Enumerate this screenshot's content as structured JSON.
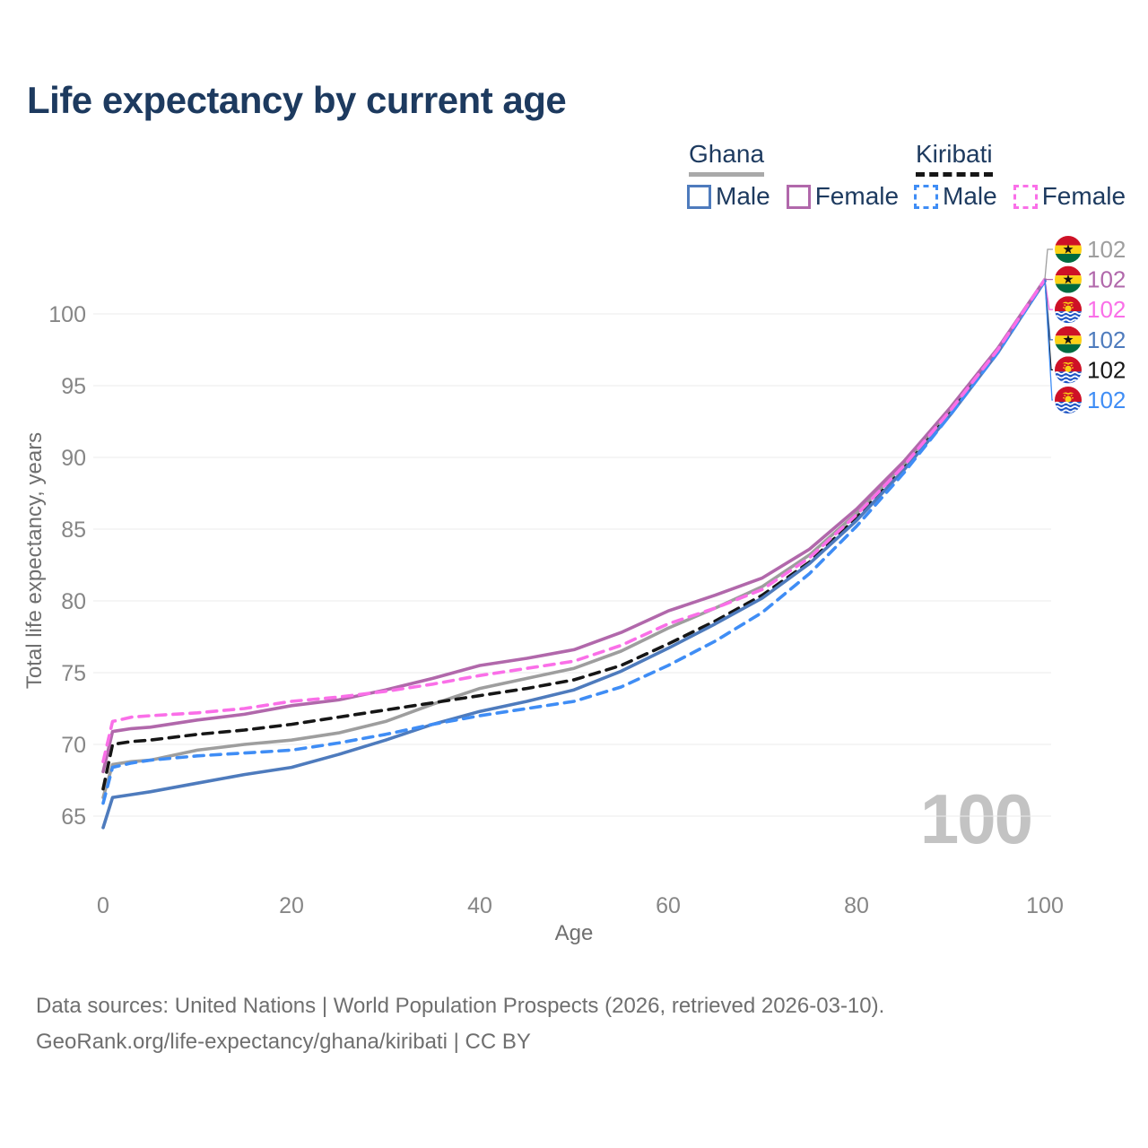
{
  "title": "Life expectancy by current age",
  "watermark": {
    "current_age_frame": "100"
  },
  "legend": {
    "groups": [
      {
        "name": "Ghana",
        "underline_color": "#a9a9a9",
        "underline_style": "solid",
        "items": [
          {
            "label": "Male",
            "color": "#4e7bbd",
            "dashed": false
          },
          {
            "label": "Female",
            "color": "#b168ab",
            "dashed": false
          }
        ]
      },
      {
        "name": "Kiribati",
        "underline_color": "#161616",
        "underline_style": "dashed",
        "items": [
          {
            "label": "Male",
            "color": "#3f8df5",
            "dashed": true
          },
          {
            "label": "Female",
            "color": "#fa6fe8",
            "dashed": true
          }
        ]
      }
    ]
  },
  "footer": {
    "line1": "Data sources: United Nations | World Population Prospects (2026, retrieved 2026-03-10).",
    "line2": "GeoRank.org/life-expectancy/ghana/kiribati | CC BY"
  },
  "chart_data": {
    "type": "line",
    "title": "Life expectancy by current age",
    "xlabel": "Age",
    "ylabel": "Total life expectancy, years",
    "xlim": [
      0,
      100
    ],
    "ylim": [
      63.5,
      103
    ],
    "x_ticks": [
      0,
      20,
      40,
      60,
      80,
      100
    ],
    "y_ticks": [
      65,
      70,
      75,
      80,
      85,
      90,
      95,
      100
    ],
    "grid": "horizontal",
    "legend_position": "top-right",
    "x": [
      0,
      1,
      3,
      5,
      10,
      15,
      20,
      25,
      30,
      35,
      40,
      45,
      50,
      55,
      60,
      65,
      70,
      75,
      80,
      85,
      90,
      95,
      100
    ],
    "series": [
      {
        "id": "ghana-total",
        "name": "Ghana",
        "flag": "ghana",
        "color": "#9e9e9e",
        "dashed": false,
        "z": 1,
        "end_label": "102",
        "values": [
          66.3,
          68.6,
          68.8,
          68.9,
          69.6,
          70.0,
          70.3,
          70.8,
          71.6,
          72.8,
          73.9,
          74.6,
          75.3,
          76.5,
          78.1,
          79.5,
          81.0,
          83.2,
          86.1,
          89.5,
          93.4,
          97.5,
          102.4
        ]
      },
      {
        "id": "ghana-female",
        "name": "Ghana Female",
        "flag": "ghana",
        "color": "#b168ab",
        "dashed": false,
        "z": 5,
        "end_label": "102",
        "values": [
          68.1,
          70.9,
          71.1,
          71.2,
          71.7,
          72.1,
          72.7,
          73.1,
          73.8,
          74.6,
          75.5,
          76.0,
          76.6,
          77.8,
          79.3,
          80.4,
          81.6,
          83.6,
          86.4,
          89.7,
          93.5,
          97.6,
          102.4
        ]
      },
      {
        "id": "kiribati-female",
        "name": "Kiribati Female",
        "flag": "kiribati",
        "color": "#fa6fe8",
        "dashed": true,
        "z": 6,
        "end_label": "102",
        "values": [
          68.8,
          71.6,
          71.9,
          72.0,
          72.2,
          72.5,
          73.0,
          73.3,
          73.7,
          74.2,
          74.8,
          75.3,
          75.8,
          76.9,
          78.4,
          79.5,
          80.8,
          83.0,
          86.0,
          89.4,
          93.3,
          97.5,
          102.4
        ]
      },
      {
        "id": "ghana-male",
        "name": "Ghana Male",
        "flag": "ghana",
        "color": "#4e7bbd",
        "dashed": false,
        "z": 3,
        "end_label": "102",
        "values": [
          64.2,
          66.3,
          66.5,
          66.7,
          67.3,
          67.9,
          68.4,
          69.3,
          70.3,
          71.4,
          72.3,
          73.0,
          73.8,
          75.1,
          76.7,
          78.4,
          80.2,
          82.6,
          85.6,
          89.1,
          93.0,
          97.3,
          102.3
        ]
      },
      {
        "id": "kiribati-total",
        "name": "Kiribati",
        "flag": "kiribati",
        "color": "#161616",
        "dashed": true,
        "z": 2,
        "end_label": "102",
        "values": [
          66.9,
          70.0,
          70.2,
          70.3,
          70.7,
          71.0,
          71.4,
          71.9,
          72.4,
          72.9,
          73.4,
          73.9,
          74.5,
          75.5,
          77.0,
          78.6,
          80.4,
          82.7,
          85.8,
          89.2,
          93.1,
          97.4,
          102.3
        ]
      },
      {
        "id": "kiribati-male",
        "name": "Kiribati Male",
        "flag": "kiribati",
        "color": "#3f8df5",
        "dashed": true,
        "z": 4,
        "end_label": "102",
        "values": [
          65.9,
          68.4,
          68.7,
          68.9,
          69.2,
          69.4,
          69.6,
          70.1,
          70.7,
          71.4,
          72.0,
          72.5,
          73.0,
          74.0,
          75.5,
          77.2,
          79.2,
          81.9,
          85.2,
          88.9,
          93.0,
          97.3,
          102.3
        ]
      }
    ]
  }
}
